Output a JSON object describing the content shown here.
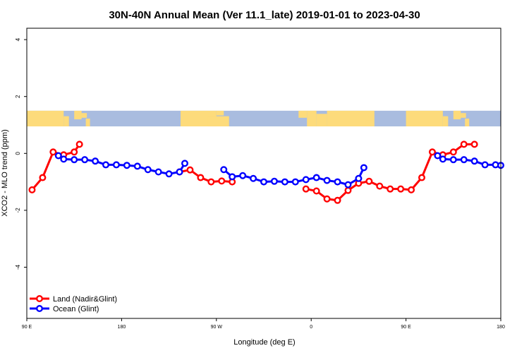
{
  "chart_data": {
    "type": "line",
    "title": "30N-40N Annual Mean (Ver 11.1_late)   2019-01-01 to 2023-04-30",
    "xlabel": "Longitude (deg E)",
    "ylabel": "XCO2 - MLO trend (ppm)",
    "xlim": [
      90,
      450
    ],
    "ylim": [
      -5.8,
      4.4
    ],
    "x_ticks": [
      {
        "value": 90,
        "label": "90 E"
      },
      {
        "value": 180,
        "label": "180"
      },
      {
        "value": 270,
        "label": "90 W"
      },
      {
        "value": 360,
        "label": "0"
      },
      {
        "value": 450,
        "label": "90 E"
      },
      {
        "value": 540,
        "label": "180"
      }
    ],
    "y_ticks": [
      {
        "value": 4,
        "label": "4"
      },
      {
        "value": 2,
        "label": "2"
      },
      {
        "value": 0,
        "label": "0"
      },
      {
        "value": -2,
        "label": "-2"
      },
      {
        "value": -4,
        "label": "-4"
      }
    ],
    "x_ticks_range": [
      90,
      540
    ],
    "map_band": {
      "y_top": 1.5,
      "y_bottom": 0.95,
      "ocean_color": "#a9bcdf",
      "land_color": "#fddb7b"
    },
    "legend": {
      "position": "bottom-left"
    },
    "series": [
      {
        "name": "Land (Nadir&Glint)",
        "color": "#ff0000",
        "segments": [
          {
            "x": [
              95,
              105,
              115,
              125,
              135,
              140
            ],
            "y": [
              -1.28,
              -0.85,
              0.05,
              -0.05,
              0.05,
              0.32
            ]
          },
          {
            "x": [
              235,
              245,
              255,
              265,
              275,
              285
            ],
            "y": [
              -0.65,
              -0.58,
              -0.85,
              -1.0,
              -0.97,
              -1.0
            ]
          },
          {
            "x": [
              355,
              365,
              375,
              385,
              395,
              405,
              415,
              425,
              435,
              445,
              455,
              465,
              475,
              485,
              495,
              505,
              515
            ],
            "y": [
              -1.25,
              -1.32,
              -1.6,
              -1.65,
              -1.3,
              -1.05,
              -0.98,
              -1.15,
              -1.25,
              -1.25,
              -1.28,
              -0.85,
              0.05,
              -0.05,
              0.05,
              0.32,
              0.32
            ]
          }
        ]
      },
      {
        "name": "Ocean (Glint)",
        "color": "#0000ff",
        "segments": [
          {
            "x": [
              120,
              125,
              135,
              145,
              155,
              165,
              175,
              185,
              195,
              205,
              215,
              225,
              235,
              240
            ],
            "y": [
              -0.08,
              -0.2,
              -0.22,
              -0.22,
              -0.27,
              -0.4,
              -0.4,
              -0.42,
              -0.45,
              -0.57,
              -0.65,
              -0.72,
              -0.65,
              -0.35
            ]
          },
          {
            "x": [
              277,
              285,
              295,
              305,
              315,
              325,
              335,
              345,
              355,
              365,
              375,
              385,
              395,
              405,
              410
            ],
            "y": [
              -0.57,
              -0.82,
              -0.78,
              -0.88,
              -1.0,
              -0.98,
              -1.0,
              -1.0,
              -0.92,
              -0.85,
              -0.95,
              -1.0,
              -1.1,
              -0.88,
              -0.5
            ]
          },
          {
            "x": [
              480,
              485,
              495,
              505,
              515,
              525,
              535,
              540
            ],
            "y": [
              -0.08,
              -0.2,
              -0.22,
              -0.22,
              -0.27,
              -0.4,
              -0.4,
              -0.42
            ]
          }
        ]
      }
    ]
  }
}
